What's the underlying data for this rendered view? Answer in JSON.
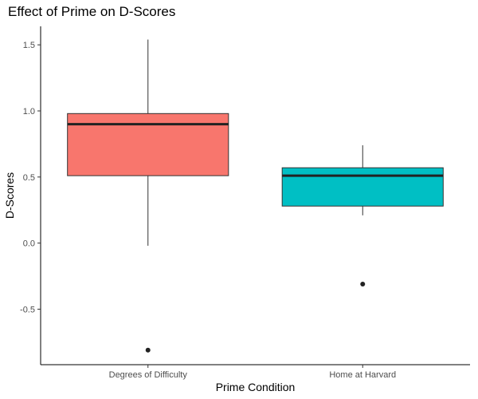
{
  "chart_data": {
    "type": "boxplot",
    "title": "Effect of Prime on D-Scores",
    "xlabel": "Prime Condition",
    "ylabel": "D-Scores",
    "ylim": [
      -0.92,
      1.64
    ],
    "yticks": [
      -0.5,
      0.0,
      0.5,
      1.0,
      1.5
    ],
    "ytick_labels": [
      "-0.5",
      "0.0",
      "0.5",
      "1.0",
      "1.5"
    ],
    "grid": false,
    "legend": "none",
    "categories": [
      "Degrees of Difficulty",
      "Home at Harvard"
    ],
    "boxes": [
      {
        "category": "Degrees of Difficulty",
        "color": "#F8766D",
        "whisker_low": -0.02,
        "q1": 0.51,
        "median": 0.9,
        "q3": 0.98,
        "whisker_high": 1.54,
        "outliers": [
          -0.81
        ]
      },
      {
        "category": "Home at Harvard",
        "color": "#00BFC4",
        "whisker_low": 0.21,
        "q1": 0.28,
        "median": 0.51,
        "q3": 0.57,
        "whisker_high": 0.74,
        "outliers": [
          -0.31
        ]
      }
    ]
  }
}
